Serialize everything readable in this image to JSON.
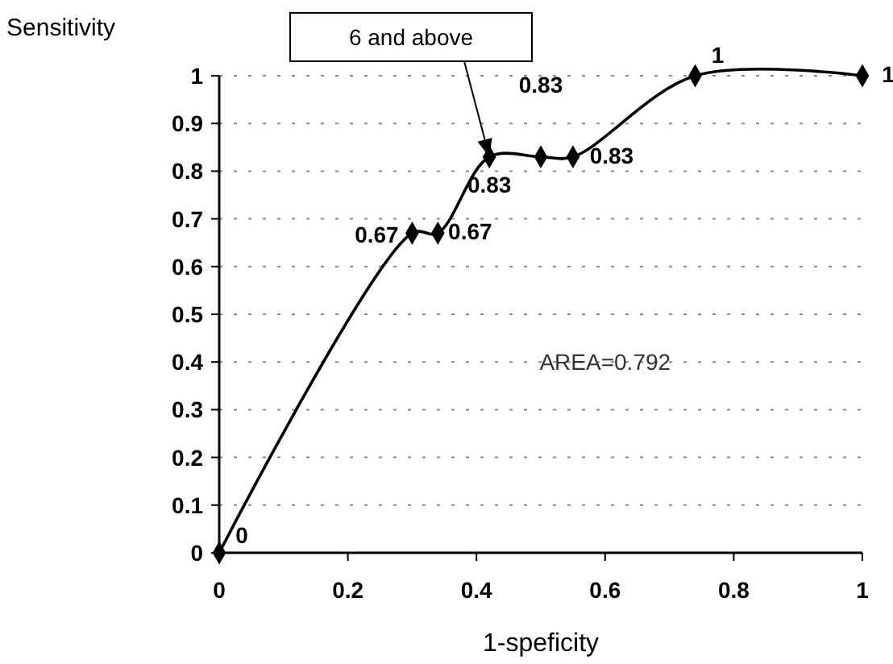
{
  "chart_data": {
    "type": "line",
    "xlabel": "1-speficity",
    "ylabel": "Sensitivity",
    "x": [
      0,
      0.3,
      0.34,
      0.42,
      0.5,
      0.55,
      0.74,
      1
    ],
    "series": [
      {
        "color": "#000000",
        "values": [
          0,
          0.67,
          0.67,
          0.83,
          0.83,
          0.83,
          1,
          1
        ]
      }
    ],
    "xlim": [
      0,
      1
    ],
    "xticks": [
      0,
      0.2,
      0.4,
      0.6,
      0.8,
      1
    ],
    "ylim": [
      0,
      1
    ],
    "yticks": [
      0,
      0.1,
      0.2,
      0.3,
      0.4,
      0.5,
      0.6,
      0.7,
      0.8,
      0.9,
      1
    ],
    "grid": "y",
    "marker": "diamond",
    "line_style": "solid",
    "data_labels": true,
    "annotations": [
      {
        "text": "6 and above",
        "x": 0.42,
        "y": 0.83
      },
      "AREA=0.792"
    ]
  }
}
